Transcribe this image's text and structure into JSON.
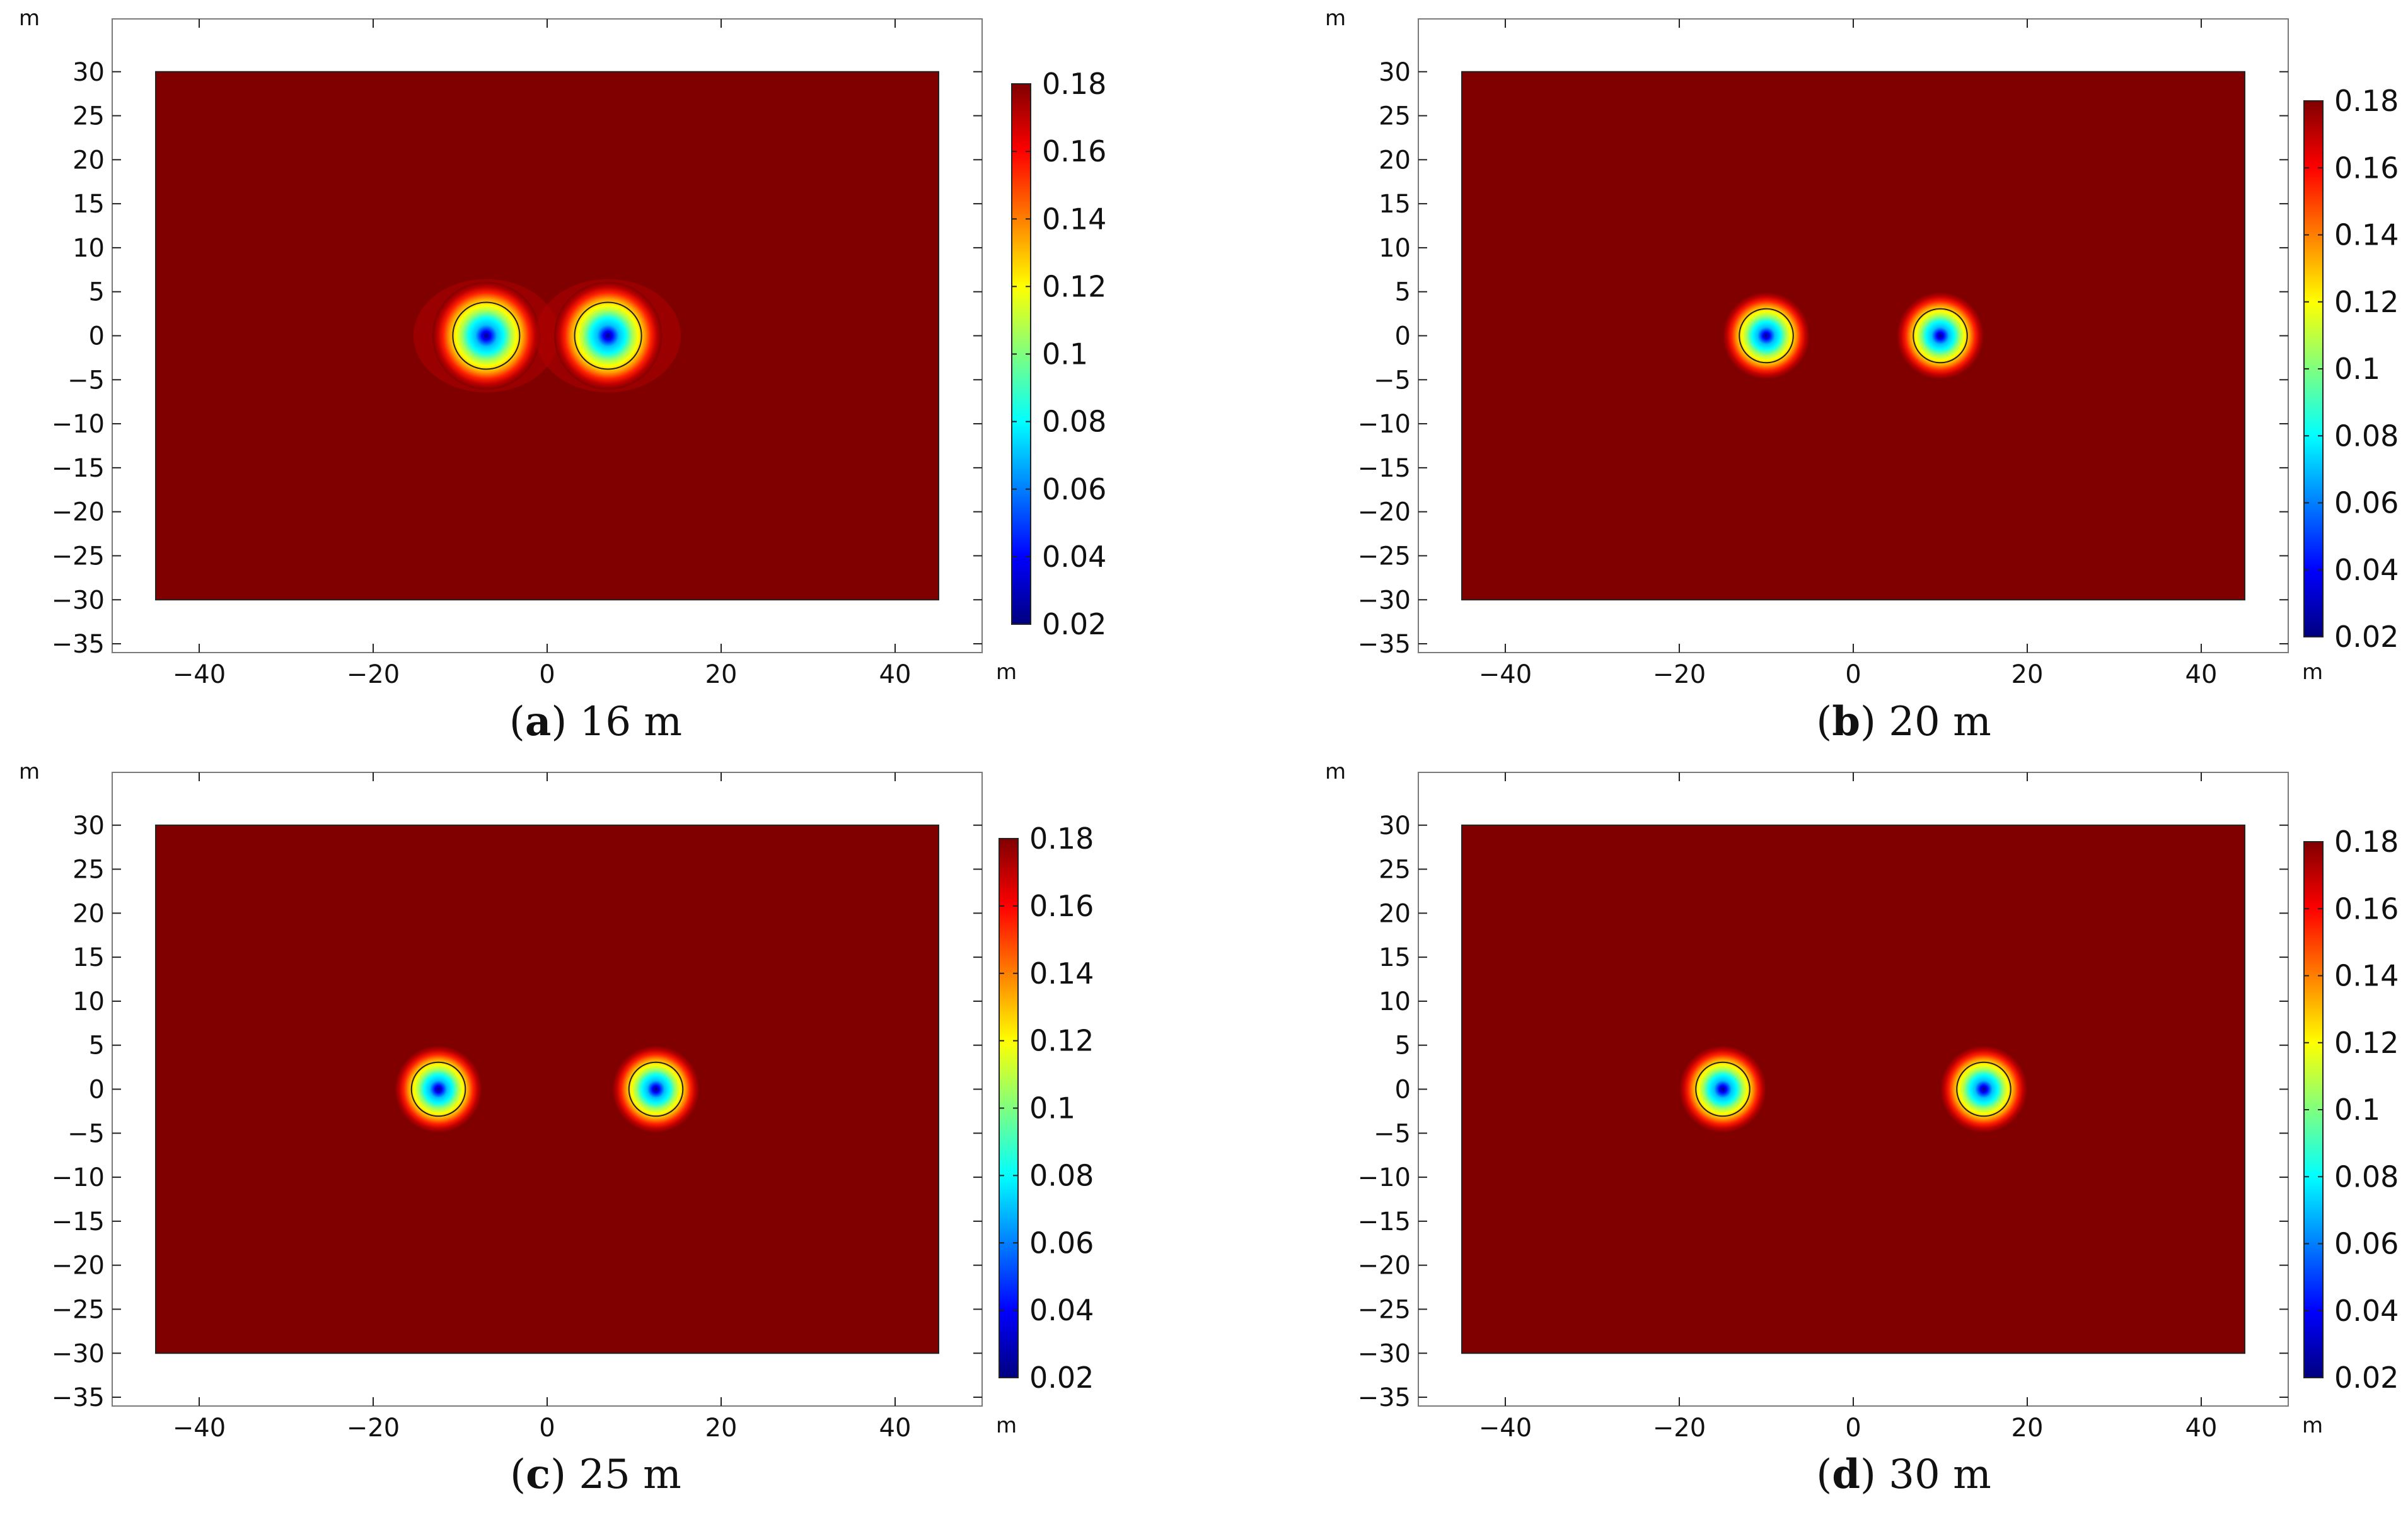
{
  "chart_data": [
    {
      "type": "heatmap",
      "caption": {
        "letter": "a",
        "text": "16 m"
      },
      "x_unit": "m",
      "y_unit": "m",
      "xlim": [
        -50,
        50
      ],
      "ylim": [
        -36,
        36
      ],
      "xticks": [
        -40,
        -20,
        0,
        20,
        40
      ],
      "xtick_labels": [
        "−40",
        "−20",
        "0",
        "20",
        "40"
      ],
      "yticks": [
        30,
        25,
        20,
        15,
        10,
        5,
        0,
        -5,
        -10,
        -15,
        -20,
        -25,
        -30,
        -35
      ],
      "ytick_labels": [
        "30",
        "25",
        "20",
        "15",
        "10",
        "5",
        "0",
        "−5",
        "−10",
        "−15",
        "−20",
        "−25",
        "−30",
        "−35"
      ],
      "domain": {
        "x": [
          -45,
          45
        ],
        "y": [
          -30,
          30
        ]
      },
      "sources": [
        {
          "x": -7,
          "y": 0
        },
        {
          "x": 7,
          "y": 0
        }
      ],
      "colorbar": {
        "range": [
          0.02,
          0.18
        ],
        "ticks": [
          0.18,
          0.16,
          0.14,
          0.12,
          0.1,
          0.08,
          0.06,
          0.04,
          0.02
        ],
        "tick_labels": [
          "0.18",
          "0.16",
          "0.14",
          "0.12",
          "0.1",
          "0.08",
          "0.06",
          "0.04",
          "0.02"
        ]
      }
    },
    {
      "type": "heatmap",
      "caption": {
        "letter": "b",
        "text": "20 m"
      },
      "x_unit": "m",
      "y_unit": "m",
      "xlim": [
        -50,
        50
      ],
      "ylim": [
        -36,
        36
      ],
      "xticks": [
        -40,
        -20,
        0,
        20,
        40
      ],
      "xtick_labels": [
        "−40",
        "−20",
        "0",
        "20",
        "40"
      ],
      "yticks": [
        30,
        25,
        20,
        15,
        10,
        5,
        0,
        -5,
        -10,
        -15,
        -20,
        -25,
        -30,
        -35
      ],
      "ytick_labels": [
        "30",
        "25",
        "20",
        "15",
        "10",
        "5",
        "0",
        "−5",
        "−10",
        "−15",
        "−20",
        "−25",
        "−30",
        "−35"
      ],
      "domain": {
        "x": [
          -45,
          45
        ],
        "y": [
          -30,
          30
        ]
      },
      "sources": [
        {
          "x": -10,
          "y": 0
        },
        {
          "x": 10,
          "y": 0
        }
      ],
      "colorbar": {
        "range": [
          0.02,
          0.18
        ],
        "ticks": [
          0.18,
          0.16,
          0.14,
          0.12,
          0.1,
          0.08,
          0.06,
          0.04,
          0.02
        ],
        "tick_labels": [
          "0.18",
          "0.16",
          "0.14",
          "0.12",
          "0.1",
          "0.08",
          "0.06",
          "0.04",
          "0.02"
        ]
      }
    },
    {
      "type": "heatmap",
      "caption": {
        "letter": "c",
        "text": "25 m"
      },
      "x_unit": "m",
      "y_unit": "m",
      "xlim": [
        -50,
        50
      ],
      "ylim": [
        -36,
        36
      ],
      "xticks": [
        -40,
        -20,
        0,
        20,
        40
      ],
      "xtick_labels": [
        "−40",
        "−20",
        "0",
        "20",
        "40"
      ],
      "yticks": [
        30,
        25,
        20,
        15,
        10,
        5,
        0,
        -5,
        -10,
        -15,
        -20,
        -25,
        -30,
        -35
      ],
      "ytick_labels": [
        "30",
        "25",
        "20",
        "15",
        "10",
        "5",
        "0",
        "−5",
        "−10",
        "−15",
        "−20",
        "−25",
        "−30",
        "−35"
      ],
      "domain": {
        "x": [
          -45,
          45
        ],
        "y": [
          -30,
          30
        ]
      },
      "sources": [
        {
          "x": -12.5,
          "y": 0
        },
        {
          "x": 12.5,
          "y": 0
        }
      ],
      "colorbar": {
        "range": [
          0.02,
          0.18
        ],
        "ticks": [
          0.18,
          0.16,
          0.14,
          0.12,
          0.1,
          0.08,
          0.06,
          0.04,
          0.02
        ],
        "tick_labels": [
          "0.18",
          "0.16",
          "0.14",
          "0.12",
          "0.1",
          "0.08",
          "0.06",
          "0.04",
          "0.02"
        ]
      }
    },
    {
      "type": "heatmap",
      "caption": {
        "letter": "d",
        "text": "30 m"
      },
      "x_unit": "m",
      "y_unit": "m",
      "xlim": [
        -50,
        50
      ],
      "ylim": [
        -36,
        36
      ],
      "xticks": [
        -40,
        -20,
        0,
        20,
        40
      ],
      "xtick_labels": [
        "−40",
        "−20",
        "0",
        "20",
        "40"
      ],
      "yticks": [
        30,
        25,
        20,
        15,
        10,
        5,
        0,
        -5,
        -10,
        -15,
        -20,
        -25,
        -30,
        -35
      ],
      "ytick_labels": [
        "30",
        "25",
        "20",
        "15",
        "10",
        "5",
        "0",
        "−5",
        "−10",
        "−15",
        "−20",
        "−25",
        "−30",
        "−35"
      ],
      "domain": {
        "x": [
          -45,
          45
        ],
        "y": [
          -30,
          30
        ]
      },
      "sources": [
        {
          "x": -15,
          "y": 0
        },
        {
          "x": 15,
          "y": 0
        }
      ],
      "colorbar": {
        "range": [
          0.02,
          0.18
        ],
        "ticks": [
          0.18,
          0.16,
          0.14,
          0.12,
          0.1,
          0.08,
          0.06,
          0.04,
          0.02
        ],
        "tick_labels": [
          "0.18",
          "0.16",
          "0.14",
          "0.12",
          "0.1",
          "0.08",
          "0.06",
          "0.04",
          "0.02"
        ]
      }
    }
  ],
  "colors": {
    "field": "#800000",
    "frame": "#7a7a7a",
    "colormap": [
      "#00007f",
      "#0000ff",
      "#007fff",
      "#00ffff",
      "#7fff7f",
      "#ffff00",
      "#ff7f00",
      "#ff0000",
      "#800000"
    ]
  }
}
